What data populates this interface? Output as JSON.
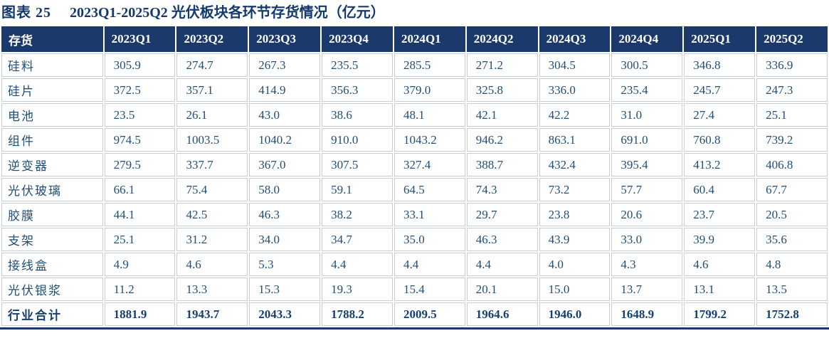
{
  "title": {
    "prefix": "图表 25",
    "text": "2023Q1-2025Q2 光伏板块各环节存货情况（亿元）"
  },
  "colors": {
    "header_bg": "#1b3a6b",
    "title_text": "#143a6d",
    "data_text": "#1f4e79",
    "grid_line": "#c8cdd1",
    "bottom_rule": "#1b3a6b"
  },
  "chart_data": {
    "type": "table",
    "title": "图表 25 2023Q1-2025Q2 光伏板块各环节存货情况（亿元）",
    "columns": [
      "存货",
      "2023Q1",
      "2023Q2",
      "2023Q3",
      "2023Q4",
      "2024Q1",
      "2024Q2",
      "2024Q3",
      "2024Q4",
      "2025Q1",
      "2025Q2"
    ],
    "rows": [
      {
        "label": "硅料",
        "is_total": false,
        "values": [
          "305.9",
          "274.7",
          "267.3",
          "235.5",
          "285.5",
          "271.2",
          "304.5",
          "300.5",
          "346.8",
          "336.9"
        ]
      },
      {
        "label": "硅片",
        "is_total": false,
        "values": [
          "372.5",
          "357.1",
          "414.9",
          "356.3",
          "379.0",
          "325.8",
          "336.0",
          "235.4",
          "245.7",
          "247.3"
        ]
      },
      {
        "label": "电池",
        "is_total": false,
        "values": [
          "23.5",
          "26.1",
          "43.0",
          "38.6",
          "48.1",
          "42.1",
          "42.2",
          "31.0",
          "27.4",
          "25.1"
        ]
      },
      {
        "label": "组件",
        "is_total": false,
        "values": [
          "974.5",
          "1003.5",
          "1040.2",
          "910.0",
          "1043.2",
          "946.2",
          "863.1",
          "691.0",
          "760.8",
          "739.2"
        ]
      },
      {
        "label": "逆变器",
        "is_total": false,
        "values": [
          "279.5",
          "337.7",
          "367.0",
          "307.5",
          "327.4",
          "388.7",
          "432.4",
          "395.4",
          "413.2",
          "406.8"
        ]
      },
      {
        "label": "光伏玻璃",
        "is_total": false,
        "values": [
          "66.1",
          "75.4",
          "58.0",
          "59.1",
          "64.5",
          "74.3",
          "73.2",
          "57.7",
          "60.4",
          "67.7"
        ]
      },
      {
        "label": "胶膜",
        "is_total": false,
        "values": [
          "44.1",
          "42.5",
          "46.3",
          "38.2",
          "33.1",
          "29.7",
          "23.8",
          "20.6",
          "23.7",
          "20.5"
        ]
      },
      {
        "label": "支架",
        "is_total": false,
        "values": [
          "25.1",
          "31.2",
          "34.0",
          "34.7",
          "35.0",
          "46.3",
          "43.9",
          "33.0",
          "39.9",
          "35.6"
        ]
      },
      {
        "label": "接线盒",
        "is_total": false,
        "values": [
          "4.9",
          "4.6",
          "5.3",
          "4.4",
          "4.4",
          "4.4",
          "4.0",
          "4.3",
          "4.6",
          "4.8"
        ]
      },
      {
        "label": "光伏银浆",
        "is_total": false,
        "values": [
          "11.2",
          "13.3",
          "15.3",
          "19.3",
          "15.4",
          "20.1",
          "15.0",
          "13.7",
          "13.1",
          "13.5"
        ]
      },
      {
        "label": "行业合计",
        "is_total": true,
        "values": [
          "1881.9",
          "1943.7",
          "2043.3",
          "1788.2",
          "2009.5",
          "1964.6",
          "1946.0",
          "1648.9",
          "1799.2",
          "1752.8"
        ]
      }
    ]
  }
}
